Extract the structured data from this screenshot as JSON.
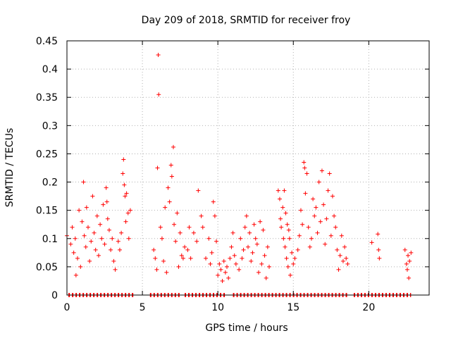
{
  "chart_data": {
    "type": "scatter",
    "title": "Day 209 of 2018, SRMTID for receiver froy",
    "xlabel": "GPS time / hours",
    "ylabel": "SRMTID / TECUs",
    "xlim": [
      0,
      24
    ],
    "ylim": [
      0,
      0.45
    ],
    "xticks": [
      0,
      5,
      10,
      15,
      20
    ],
    "xtick_labels": [
      "0",
      "5",
      "10",
      "15",
      "20"
    ],
    "yticks": [
      0,
      0.05,
      0.1,
      0.15,
      0.2,
      0.25,
      0.3,
      0.35,
      0.4,
      0.45
    ],
    "ytick_labels": [
      "0",
      "0.05",
      "0.1",
      "0.15",
      "0.2",
      "0.25",
      "0.3",
      "0.35",
      "0.4",
      "0.45"
    ],
    "grid": true,
    "legend": "none",
    "marker": "+",
    "color": "#ff0000",
    "series": [
      {
        "name": "SRMTID",
        "points": [
          [
            0.0,
            0.105
          ],
          [
            0.25,
            0.09
          ],
          [
            0.35,
            0.12
          ],
          [
            0.45,
            0.075
          ],
          [
            0.55,
            0.1
          ],
          [
            0.6,
            0.035
          ],
          [
            0.7,
            0.065
          ],
          [
            0.8,
            0.15
          ],
          [
            0.9,
            0.05
          ],
          [
            1.0,
            0.13
          ],
          [
            1.1,
            0.2
          ],
          [
            1.15,
            0.105
          ],
          [
            1.25,
            0.085
          ],
          [
            1.3,
            0.155
          ],
          [
            1.4,
            0.12
          ],
          [
            1.5,
            0.06
          ],
          [
            1.6,
            0.095
          ],
          [
            1.7,
            0.175
          ],
          [
            1.8,
            0.11
          ],
          [
            1.9,
            0.08
          ],
          [
            2.0,
            0.14
          ],
          [
            2.1,
            0.07
          ],
          [
            2.2,
            0.125
          ],
          [
            2.3,
            0.1
          ],
          [
            2.4,
            0.16
          ],
          [
            2.5,
            0.09
          ],
          [
            2.6,
            0.19
          ],
          [
            2.65,
            0.165
          ],
          [
            2.7,
            0.135
          ],
          [
            2.8,
            0.115
          ],
          [
            2.9,
            0.08
          ],
          [
            3.0,
            0.1
          ],
          [
            3.1,
            0.06
          ],
          [
            3.2,
            0.045
          ],
          [
            3.4,
            0.095
          ],
          [
            3.5,
            0.08
          ],
          [
            3.6,
            0.11
          ],
          [
            3.7,
            0.215
          ],
          [
            3.75,
            0.24
          ],
          [
            3.8,
            0.195
          ],
          [
            3.85,
            0.175
          ],
          [
            3.9,
            0.13
          ],
          [
            3.95,
            0.18
          ],
          [
            4.05,
            0.145
          ],
          [
            4.1,
            0.1
          ],
          [
            4.2,
            0.15
          ],
          [
            5.75,
            0.08
          ],
          [
            5.85,
            0.065
          ],
          [
            5.95,
            0.045
          ],
          [
            6.0,
            0.225
          ],
          [
            6.05,
            0.425
          ],
          [
            6.08,
            0.355
          ],
          [
            6.2,
            0.12
          ],
          [
            6.3,
            0.1
          ],
          [
            6.4,
            0.06
          ],
          [
            6.5,
            0.155
          ],
          [
            6.6,
            0.04
          ],
          [
            6.7,
            0.19
          ],
          [
            6.8,
            0.165
          ],
          [
            6.9,
            0.23
          ],
          [
            6.95,
            0.21
          ],
          [
            7.05,
            0.262
          ],
          [
            7.1,
            0.125
          ],
          [
            7.2,
            0.095
          ],
          [
            7.3,
            0.145
          ],
          [
            7.4,
            0.05
          ],
          [
            7.5,
            0.11
          ],
          [
            7.6,
            0.07
          ],
          [
            7.7,
            0.065
          ],
          [
            7.8,
            0.085
          ],
          [
            8.0,
            0.08
          ],
          [
            8.1,
            0.12
          ],
          [
            8.2,
            0.065
          ],
          [
            8.4,
            0.11
          ],
          [
            8.6,
            0.095
          ],
          [
            8.7,
            0.185
          ],
          [
            8.9,
            0.14
          ],
          [
            9.0,
            0.12
          ],
          [
            9.2,
            0.065
          ],
          [
            9.4,
            0.1
          ],
          [
            9.5,
            0.055
          ],
          [
            9.6,
            0.075
          ],
          [
            9.7,
            0.165
          ],
          [
            9.8,
            0.14
          ],
          [
            9.9,
            0.095
          ],
          [
            10.0,
            0.035
          ],
          [
            10.1,
            0.055
          ],
          [
            10.2,
            0.045
          ],
          [
            10.3,
            0.025
          ],
          [
            10.4,
            0.06
          ],
          [
            10.5,
            0.04
          ],
          [
            10.6,
            0.05
          ],
          [
            10.7,
            0.03
          ],
          [
            10.8,
            0.065
          ],
          [
            10.9,
            0.085
          ],
          [
            11.0,
            0.11
          ],
          [
            11.1,
            0.07
          ],
          [
            11.2,
            0.055
          ],
          [
            11.4,
            0.045
          ],
          [
            11.5,
            0.1
          ],
          [
            11.6,
            0.065
          ],
          [
            11.7,
            0.08
          ],
          [
            11.8,
            0.12
          ],
          [
            11.9,
            0.14
          ],
          [
            12.0,
            0.085
          ],
          [
            12.1,
            0.11
          ],
          [
            12.2,
            0.06
          ],
          [
            12.3,
            0.075
          ],
          [
            12.4,
            0.125
          ],
          [
            12.5,
            0.1
          ],
          [
            12.6,
            0.09
          ],
          [
            12.7,
            0.04
          ],
          [
            12.8,
            0.13
          ],
          [
            12.9,
            0.055
          ],
          [
            13.0,
            0.115
          ],
          [
            13.1,
            0.07
          ],
          [
            13.2,
            0.03
          ],
          [
            13.3,
            0.085
          ],
          [
            13.4,
            0.05
          ],
          [
            14.0,
            0.185
          ],
          [
            14.1,
            0.17
          ],
          [
            14.15,
            0.135
          ],
          [
            14.2,
            0.12
          ],
          [
            14.3,
            0.155
          ],
          [
            14.35,
            0.1
          ],
          [
            14.4,
            0.185
          ],
          [
            14.45,
            0.085
          ],
          [
            14.5,
            0.145
          ],
          [
            14.55,
            0.065
          ],
          [
            14.6,
            0.125
          ],
          [
            14.65,
            0.05
          ],
          [
            14.7,
            0.115
          ],
          [
            14.75,
            0.1
          ],
          [
            14.8,
            0.035
          ],
          [
            14.9,
            0.075
          ],
          [
            15.0,
            0.055
          ],
          [
            15.1,
            0.065
          ],
          [
            15.3,
            0.08
          ],
          [
            15.4,
            0.105
          ],
          [
            15.5,
            0.15
          ],
          [
            15.6,
            0.125
          ],
          [
            15.7,
            0.235
          ],
          [
            15.75,
            0.225
          ],
          [
            15.8,
            0.18
          ],
          [
            15.9,
            0.215
          ],
          [
            16.0,
            0.12
          ],
          [
            16.1,
            0.085
          ],
          [
            16.2,
            0.1
          ],
          [
            16.3,
            0.17
          ],
          [
            16.4,
            0.14
          ],
          [
            16.5,
            0.155
          ],
          [
            16.6,
            0.11
          ],
          [
            16.7,
            0.2
          ],
          [
            16.8,
            0.13
          ],
          [
            16.9,
            0.22
          ],
          [
            17.0,
            0.16
          ],
          [
            17.1,
            0.09
          ],
          [
            17.2,
            0.135
          ],
          [
            17.3,
            0.185
          ],
          [
            17.4,
            0.215
          ],
          [
            17.5,
            0.105
          ],
          [
            17.6,
            0.175
          ],
          [
            17.7,
            0.14
          ],
          [
            17.8,
            0.12
          ],
          [
            17.9,
            0.08
          ],
          [
            18.0,
            0.045
          ],
          [
            18.1,
            0.07
          ],
          [
            18.2,
            0.105
          ],
          [
            18.3,
            0.06
          ],
          [
            18.4,
            0.085
          ],
          [
            18.5,
            0.065
          ],
          [
            18.6,
            0.055
          ],
          [
            20.2,
            0.093
          ],
          [
            20.6,
            0.108
          ],
          [
            20.65,
            0.08
          ],
          [
            20.7,
            0.065
          ],
          [
            22.4,
            0.08
          ],
          [
            22.5,
            0.055
          ],
          [
            22.55,
            0.045
          ],
          [
            22.6,
            0.07
          ],
          [
            22.65,
            0.03
          ],
          [
            22.7,
            0.06
          ],
          [
            22.8,
            0.075
          ]
        ]
      },
      {
        "name": "zero values",
        "x_ranges": [
          [
            0.1,
            4.4
          ],
          [
            5.5,
            7.6
          ],
          [
            7.8,
            10.5
          ],
          [
            11.0,
            13.7
          ],
          [
            13.8,
            18.6
          ],
          [
            19.0,
            22.8
          ]
        ],
        "y": 0
      }
    ]
  }
}
